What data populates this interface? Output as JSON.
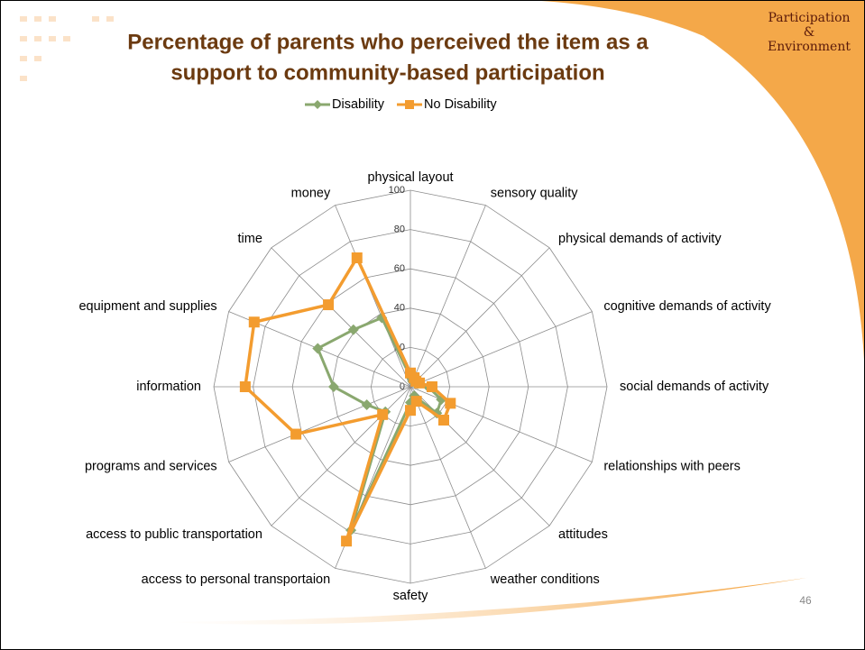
{
  "slide": {
    "badge": [
      "Participation",
      "&",
      "Environment"
    ],
    "page_number": "46"
  },
  "chart_data": {
    "type": "radar",
    "title": [
      "Percentage of parents who perceived the item as a",
      "support to community-based participation"
    ],
    "categories": [
      "physical layout",
      "sensory quality",
      "physical demands of activity",
      "cognitive demands of activity",
      "social demands of activity",
      "relationships with peers",
      "attitudes",
      "weather conditions",
      "safety",
      "access to personal transportaion",
      "access to public transportation",
      "programs and services",
      "information",
      "equipment and supplies",
      "time",
      "money"
    ],
    "series": [
      {
        "name": "Disability",
        "color": "#8aa86f",
        "marker": "diamond",
        "values": [
          5,
          3,
          3,
          4,
          9,
          17,
          19,
          5,
          8,
          79,
          18,
          24,
          39,
          51,
          41,
          38
        ]
      },
      {
        "name": "No Disability",
        "color": "#f39c2f",
        "marker": "square",
        "values": [
          7,
          5,
          4,
          5,
          11,
          22,
          24,
          8,
          12,
          85,
          20,
          63,
          84,
          86,
          59,
          71
        ]
      }
    ],
    "ylim": [
      0,
      100
    ],
    "yticks": [
      0,
      20,
      40,
      60,
      80,
      100
    ],
    "legend": "top",
    "grid": true
  }
}
